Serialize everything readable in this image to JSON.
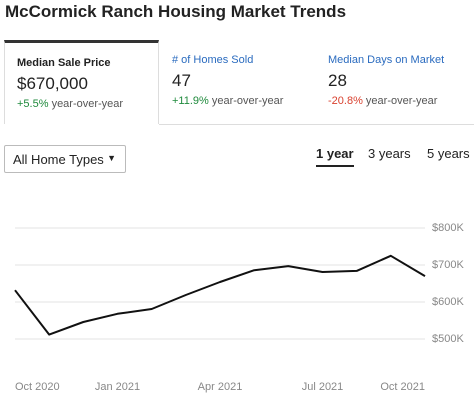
{
  "header": {
    "title": "McCormick Ranch Housing Market Trends"
  },
  "cards": [
    {
      "label": "Median Sale Price",
      "value": "$670,000",
      "change": "+5.5%",
      "change_text": "year-over-year"
    },
    {
      "label": "# of Homes Sold",
      "value": "47",
      "change": "+11.9%",
      "change_text": "year-over-year"
    },
    {
      "label": "Median Days on Market",
      "value": "28",
      "change": "-20.8%",
      "change_text": "year-over-year"
    }
  ],
  "filter": {
    "label": "All Home Types"
  },
  "tabs": [
    "1 year",
    "3 years",
    "5 years"
  ],
  "chart_data": {
    "type": "line",
    "categories": [
      "Oct 2020",
      null,
      null,
      "Jan 2021",
      null,
      null,
      "Apr 2021",
      null,
      null,
      "Jul 2021",
      null,
      null,
      "Oct 2021"
    ],
    "series": [
      {
        "name": "Median Sale Price",
        "color": "#111111",
        "values": [
          632000,
          512000,
          546000,
          568000,
          581000,
          619000,
          654000,
          686000,
          697000,
          681000,
          684000,
          725000,
          670000
        ]
      }
    ],
    "ylim": [
      500000,
      800000
    ],
    "yticks": [
      {
        "value": 500000,
        "label": "$500K"
      },
      {
        "value": 600000,
        "label": "$600K"
      },
      {
        "value": 700000,
        "label": "$700K"
      },
      {
        "value": 800000,
        "label": "$800K"
      }
    ],
    "grid": true
  }
}
